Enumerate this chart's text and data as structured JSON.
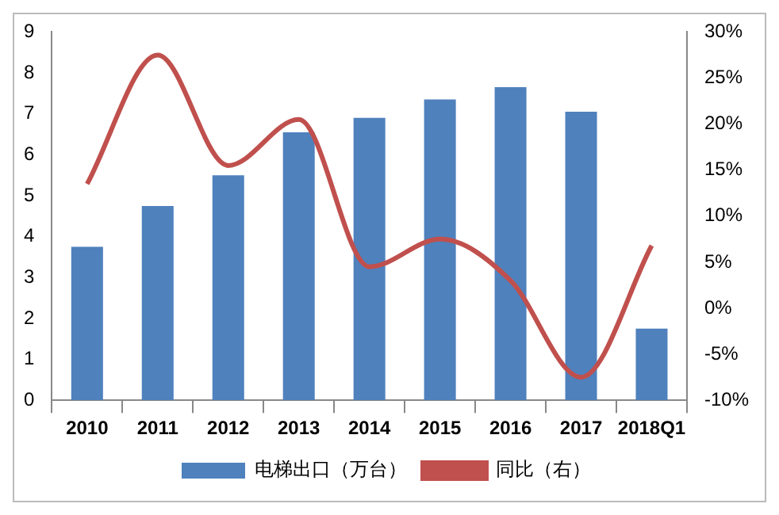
{
  "chart_data": {
    "type": "bar",
    "categories": [
      "2010",
      "2011",
      "2012",
      "2013",
      "2014",
      "2015",
      "2016",
      "2017",
      "2018Q1"
    ],
    "series": [
      {
        "name": "电梯出口（万台）",
        "color": "#4f81bd",
        "values": [
          3.75,
          4.75,
          5.5,
          6.55,
          6.9,
          7.35,
          7.65,
          7.05,
          1.75
        ]
      },
      {
        "name": "同比（右）",
        "type": "line",
        "axis": "y2",
        "color": "#c0504d",
        "values": [
          13.5,
          27.5,
          15.5,
          20.5,
          4.5,
          7.5,
          3,
          -7.5,
          6.8
        ]
      }
    ],
    "ylim": [
      0,
      9
    ],
    "yticks": [
      0,
      1,
      2,
      3,
      4,
      5,
      6,
      7,
      8,
      9
    ],
    "y2lim": [
      -10,
      30
    ],
    "y2ticks": [
      {
        "value": -10,
        "label": "-10%"
      },
      {
        "value": -5,
        "label": "-5%"
      },
      {
        "value": 0,
        "label": "0%"
      },
      {
        "value": 5,
        "label": "5%"
      },
      {
        "value": 10,
        "label": "10%"
      },
      {
        "value": 15,
        "label": "15%"
      },
      {
        "value": 20,
        "label": "20%"
      },
      {
        "value": 25,
        "label": "25%"
      },
      {
        "value": 30,
        "label": "30%"
      }
    ],
    "legend": "bottom",
    "grid": false,
    "marker": "none"
  }
}
